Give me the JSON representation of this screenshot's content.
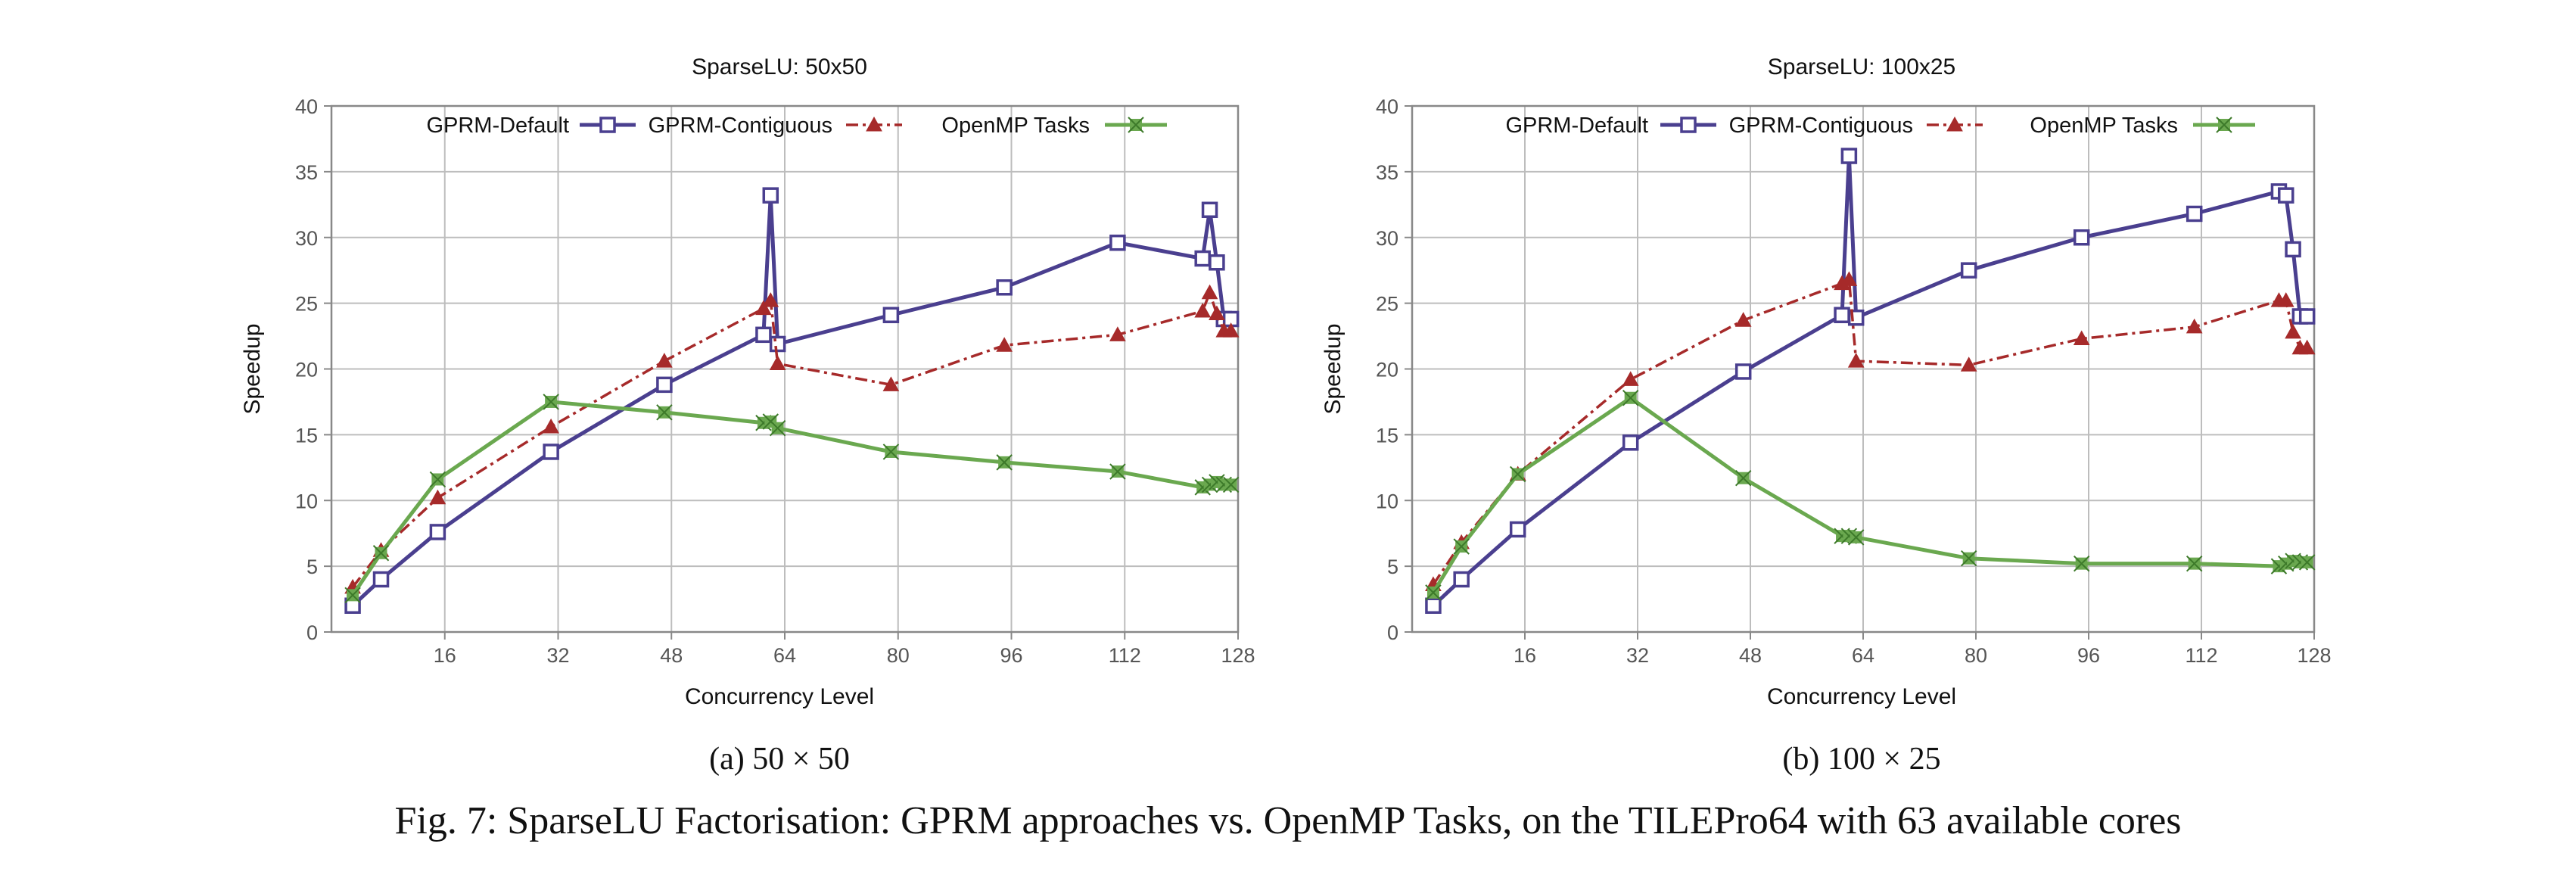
{
  "caption": "Fig. 7: SparseLU Factorisation: GPRM approaches vs. OpenMP Tasks, on the TILEPro64 with 63 available cores",
  "colors": {
    "gprm_default": "#4a3f8f",
    "gprm_contiguous": "#a62a2a",
    "openmp": "#6aa84f",
    "grid": "#bdbdbd",
    "axis": "#888888"
  },
  "chart_data": [
    {
      "type": "line",
      "title": "SparseLU: 50x50",
      "subcaption": "(a)  50 × 50",
      "xlabel": "Concurrency Level",
      "ylabel": "Speedup",
      "xlim": [
        0,
        128
      ],
      "ylim": [
        0,
        40
      ],
      "xticks": [
        16,
        32,
        48,
        64,
        80,
        96,
        112,
        128
      ],
      "yticks": [
        0,
        5,
        10,
        15,
        20,
        25,
        30,
        35,
        40
      ],
      "grid": true,
      "legend_position": "top",
      "series": [
        {
          "name": "GPRM-Default",
          "x": [
            3,
            7,
            15,
            31,
            47,
            61,
            62,
            63,
            79,
            95,
            111,
            123,
            124,
            125,
            126,
            127
          ],
          "y": [
            2.0,
            4.0,
            7.6,
            13.7,
            18.8,
            22.6,
            33.2,
            21.9,
            24.1,
            26.2,
            29.6,
            28.4,
            32.1,
            28.1,
            23.8,
            23.8
          ]
        },
        {
          "name": "GPRM-Contiguous",
          "x": [
            3,
            7,
            15,
            31,
            47,
            61,
            62,
            63,
            79,
            95,
            111,
            123,
            124,
            125,
            126,
            127
          ],
          "y": [
            3.4,
            6.2,
            10.2,
            15.6,
            20.6,
            24.6,
            25.2,
            20.4,
            18.8,
            21.8,
            22.6,
            24.4,
            25.8,
            24.2,
            22.9,
            22.9
          ]
        },
        {
          "name": "OpenMP Tasks",
          "x": [
            3,
            7,
            15,
            31,
            47,
            61,
            62,
            63,
            79,
            95,
            111,
            123,
            124,
            125,
            126,
            127
          ],
          "y": [
            2.8,
            6.0,
            11.6,
            17.5,
            16.7,
            15.9,
            16.0,
            15.5,
            13.7,
            12.9,
            12.2,
            11.0,
            11.2,
            11.4,
            11.2,
            11.2
          ]
        }
      ]
    },
    {
      "type": "line",
      "title": "SparseLU: 100x25",
      "subcaption": "(b)  100 × 25",
      "xlabel": "Concurrency Level",
      "ylabel": "Speedup",
      "xlim": [
        0,
        128
      ],
      "ylim": [
        0,
        40
      ],
      "xticks": [
        16,
        32,
        48,
        64,
        80,
        96,
        112,
        128
      ],
      "yticks": [
        0,
        5,
        10,
        15,
        20,
        25,
        30,
        35,
        40
      ],
      "grid": true,
      "legend_position": "top",
      "series": [
        {
          "name": "GPRM-Default",
          "x": [
            3,
            7,
            15,
            31,
            47,
            61,
            62,
            63,
            79,
            95,
            111,
            123,
            124,
            125,
            126,
            127
          ],
          "y": [
            2.0,
            4.0,
            7.8,
            14.4,
            19.8,
            24.1,
            36.2,
            23.9,
            27.5,
            30.0,
            31.8,
            33.5,
            33.2,
            29.1,
            24.0,
            24.0
          ]
        },
        {
          "name": "GPRM-Contiguous",
          "x": [
            3,
            7,
            15,
            31,
            47,
            61,
            62,
            63,
            79,
            95,
            111,
            123,
            124,
            125,
            126,
            127
          ],
          "y": [
            3.6,
            6.8,
            12.0,
            19.2,
            23.7,
            26.5,
            26.8,
            20.6,
            20.3,
            22.3,
            23.2,
            25.2,
            25.2,
            22.8,
            21.6,
            21.6
          ]
        },
        {
          "name": "OpenMP Tasks",
          "x": [
            3,
            7,
            15,
            31,
            47,
            61,
            62,
            63,
            79,
            95,
            111,
            123,
            124,
            125,
            126,
            127
          ],
          "y": [
            3.0,
            6.5,
            12.0,
            17.8,
            11.7,
            7.3,
            7.3,
            7.2,
            5.6,
            5.2,
            5.2,
            5.0,
            5.2,
            5.4,
            5.3,
            5.3
          ]
        }
      ]
    }
  ]
}
